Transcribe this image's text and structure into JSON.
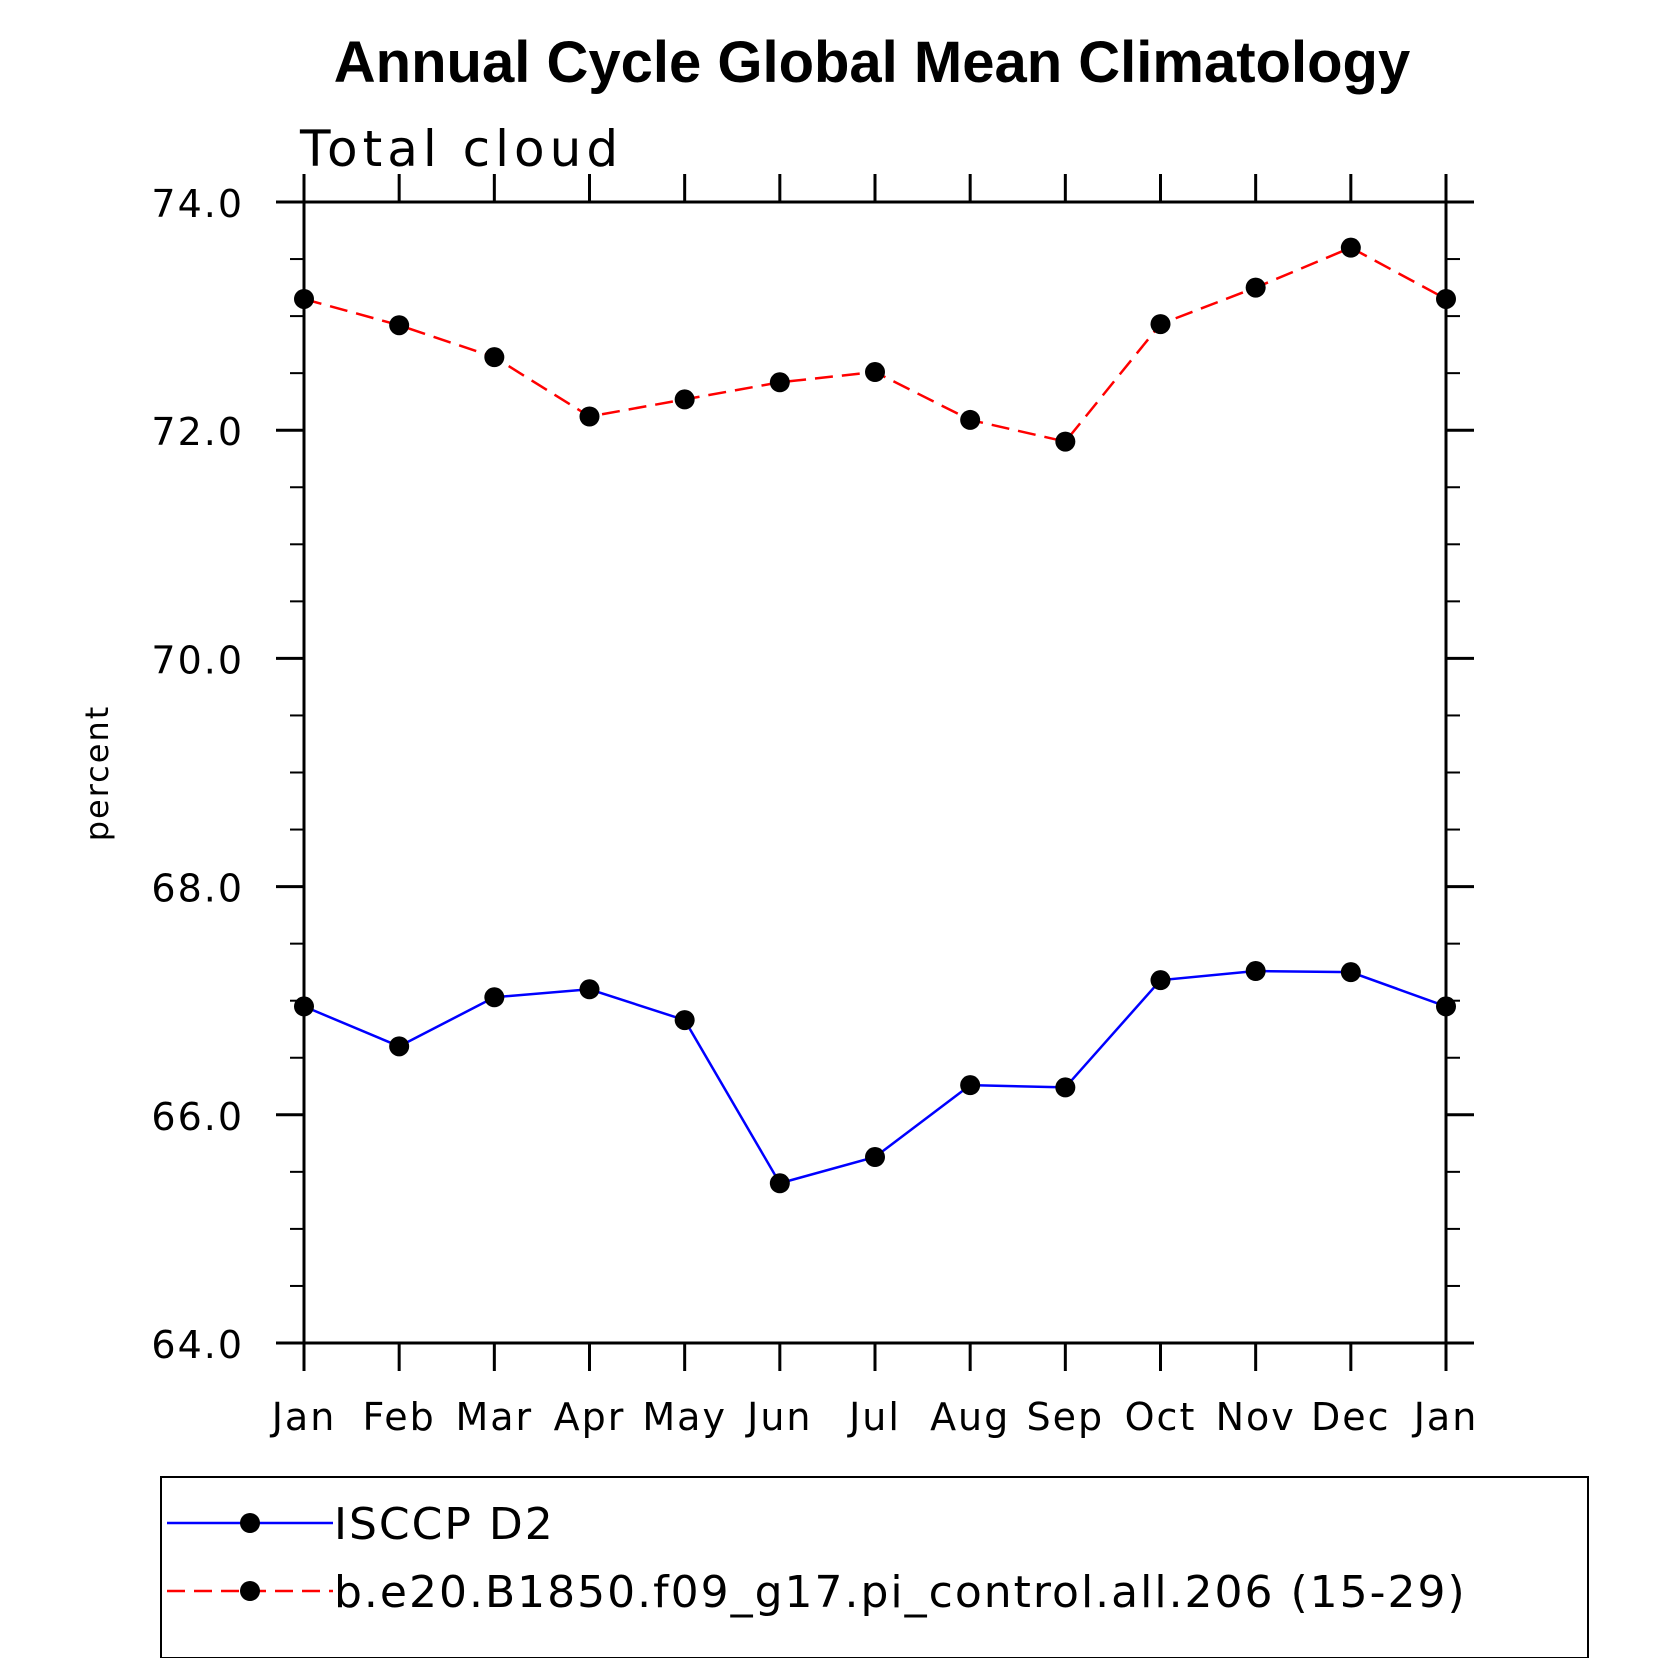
{
  "chart_data": {
    "type": "line",
    "title": "Annual Cycle Global Mean Climatology",
    "subtitle": "Total cloud",
    "ylabel": "percent",
    "xlabel": "",
    "categories": [
      "Jan",
      "Feb",
      "Mar",
      "Apr",
      "May",
      "Jun",
      "Jul",
      "Aug",
      "Sep",
      "Oct",
      "Nov",
      "Dec",
      "Jan"
    ],
    "ylim": [
      64.0,
      74.0
    ],
    "yticks": [
      "64.0",
      "66.0",
      "68.0",
      "70.0",
      "72.0",
      "74.0"
    ],
    "grid": false,
    "legend_placement": "bottom",
    "series": [
      {
        "name": "ISCCP D2",
        "color": "#0000ff",
        "line_style": "solid",
        "marker": "filled-circle",
        "values": [
          66.95,
          66.6,
          67.03,
          67.1,
          66.83,
          65.4,
          65.63,
          66.26,
          66.24,
          67.18,
          67.26,
          67.25,
          66.95
        ]
      },
      {
        "name": "b.e20.B1850.f09_g17.pi_control.all.206 (15-29)",
        "color": "#ff0000",
        "line_style": "dashed",
        "marker": "filled-circle",
        "values": [
          73.15,
          72.92,
          72.64,
          72.12,
          72.27,
          72.42,
          72.51,
          72.09,
          71.9,
          72.93,
          73.25,
          73.6,
          73.15
        ]
      }
    ]
  }
}
